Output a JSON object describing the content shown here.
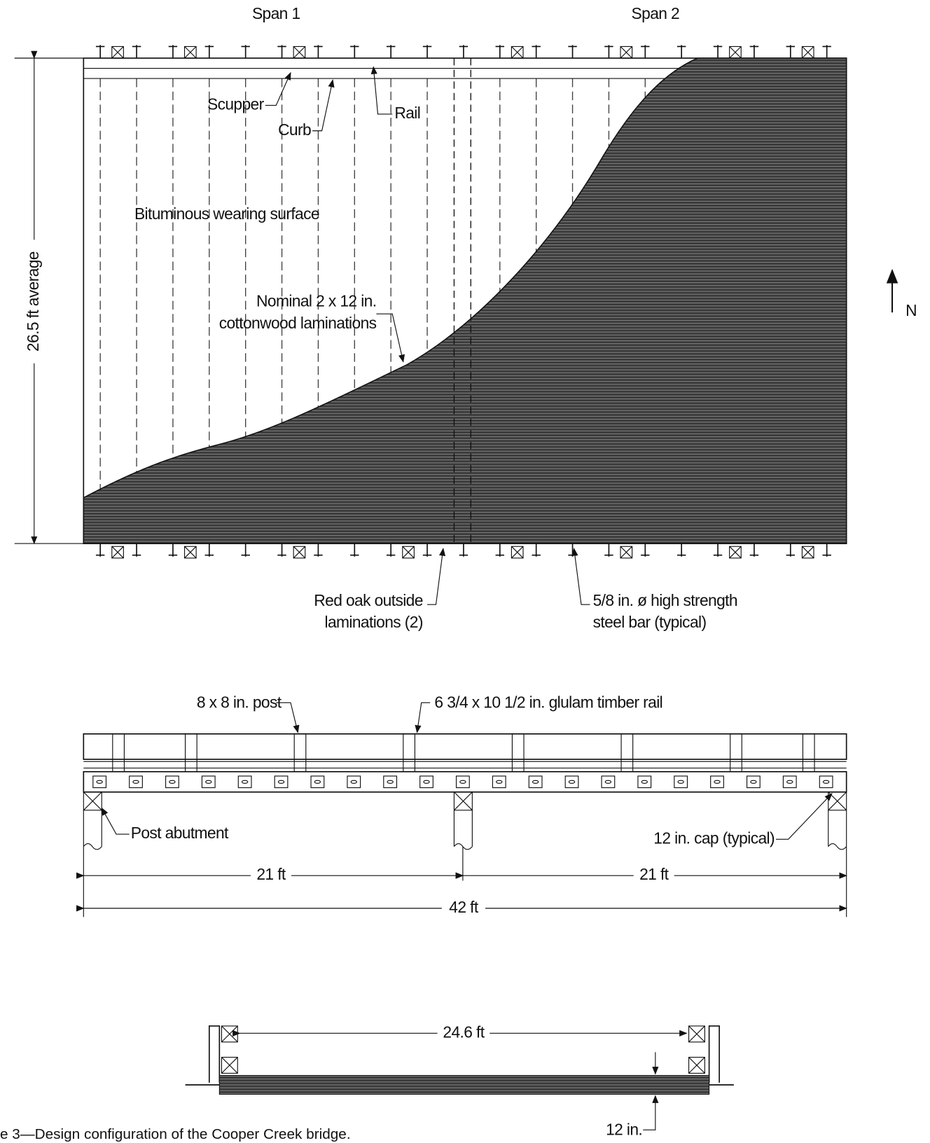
{
  "plan": {
    "span_labels": [
      "Span 1",
      "Span 2"
    ],
    "scupper": "Scupper",
    "curb": "Curb",
    "rail": "Rail",
    "surface": "Bituminous wearing surface",
    "width_dim": "26.5 ft average",
    "laminations": [
      "Nominal 2 x 12 in.",
      "cottonwood laminations"
    ],
    "north": "N",
    "red_oak": [
      "Red oak outside",
      "laminations (2)"
    ],
    "steel_bar": [
      "5/8 in. ø high strength",
      "steel bar (typical)"
    ]
  },
  "elevation": {
    "post": "8 x 8 in. post",
    "glulam_rail": "6 3/4 x 10 1/2 in. glulam timber rail",
    "abutment": "Post abutment",
    "cap": "12 in. cap (typical)",
    "span_dims": [
      "21 ft",
      "21 ft"
    ],
    "total_dim": "42 ft"
  },
  "section": {
    "width_dim": "24.6 ft",
    "depth_dim": "12 in."
  },
  "caption": "e 3—Design configuration of the Cooper Creek bridge."
}
